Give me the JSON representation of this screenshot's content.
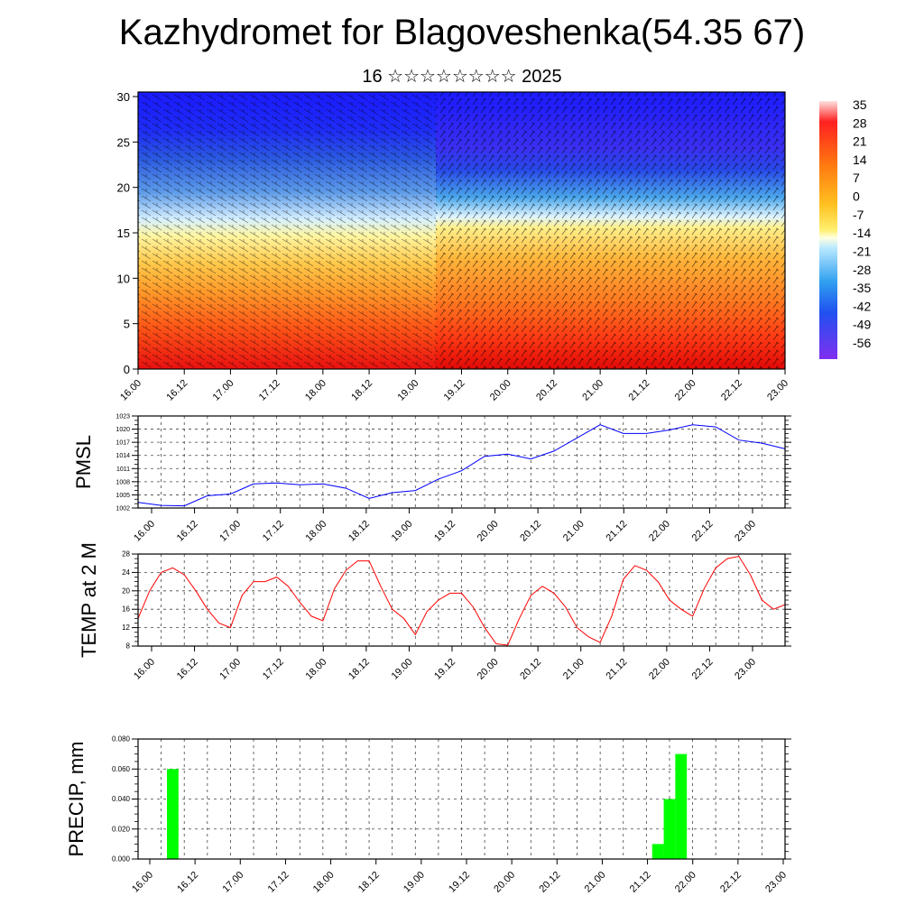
{
  "header": {
    "title": "Kazhydromet for Blagoveshenka(54.35 67)",
    "subtitle": "16 ☆☆☆☆☆☆☆☆ 2025"
  },
  "colors": {
    "pmsl_line": "#0000ff",
    "temp_line": "#ff0000",
    "precip_bar": "#00ff00",
    "grid": "#555555"
  },
  "chart_data": [
    {
      "type": "heatmap",
      "description_units": "temperature field with wind barbs",
      "x_ticks": [
        "16.00",
        "16.12",
        "17.00",
        "17.12",
        "18.00",
        "18.12",
        "19.00",
        "19.12",
        "20.00",
        "20.12",
        "21.00",
        "21.12",
        "22.00",
        "22.12",
        "23.00"
      ],
      "y_ticks": [
        0,
        5,
        10,
        15,
        20,
        25,
        30
      ],
      "ylim": [
        0,
        30.5
      ],
      "colorbar_labels": [
        "35",
        "28",
        "21",
        "14",
        "7",
        "0",
        "-7",
        "-14",
        "-21",
        "-28",
        "-35",
        "-42",
        "-49",
        "-56"
      ]
    },
    {
      "type": "line",
      "ylabel": "PMSL",
      "x_ticks": [
        "16.00",
        "16.12",
        "17.00",
        "17.12",
        "18.00",
        "18.12",
        "19.00",
        "19.12",
        "20.00",
        "20.12",
        "21.00",
        "21.12",
        "22.00",
        "22.12",
        "23.00"
      ],
      "y_ticks": [
        1002,
        1005,
        1008,
        1011,
        1014,
        1017,
        1020,
        1023
      ],
      "ylim": [
        1002,
        1023
      ],
      "xlim": [
        0,
        14
      ],
      "x": [
        0,
        0.5,
        1,
        1.5,
        2,
        2.5,
        3,
        3.5,
        4,
        4.5,
        5,
        5.5,
        6,
        6.5,
        7,
        7.5,
        8,
        8.5,
        9,
        9.5,
        10,
        10.5,
        11,
        11.5,
        12,
        12.5,
        13,
        13.5,
        14
      ],
      "values": [
        1003.3,
        1002.6,
        1002.5,
        1004.8,
        1005.2,
        1007.5,
        1007.7,
        1007.3,
        1007.5,
        1006.5,
        1004.2,
        1005.5,
        1006.0,
        1008.6,
        1010.5,
        1013.8,
        1014.3,
        1013.2,
        1015.0,
        1018.0,
        1021.0,
        1019.0,
        1019.0,
        1019.8,
        1021.0,
        1020.5,
        1017.5,
        1016.8,
        1015.5
      ]
    },
    {
      "type": "line",
      "ylabel": "TEMP at 2 M",
      "x_ticks": [
        "16.00",
        "16.12",
        "17.00",
        "17.12",
        "18.00",
        "18.12",
        "19.00",
        "19.12",
        "20.00",
        "20.12",
        "21.00",
        "21.12",
        "22.00",
        "22.12",
        "23.00"
      ],
      "y_ticks": [
        8,
        12,
        16,
        20,
        24,
        28
      ],
      "ylim": [
        8,
        28
      ],
      "xlim": [
        0,
        14
      ],
      "x": [
        0,
        0.25,
        0.5,
        0.75,
        1,
        1.25,
        1.5,
        1.75,
        2,
        2.25,
        2.5,
        2.75,
        3,
        3.25,
        3.5,
        3.75,
        4,
        4.25,
        4.5,
        4.75,
        5,
        5.25,
        5.5,
        5.75,
        6,
        6.25,
        6.5,
        6.75,
        7,
        7.25,
        7.5,
        7.75,
        8,
        8.25,
        8.5,
        8.75,
        9,
        9.25,
        9.5,
        9.75,
        10,
        10.25,
        10.5,
        10.75,
        11,
        11.25,
        11.5,
        11.75,
        12,
        12.25,
        12.5,
        12.75,
        13,
        13.25,
        13.5,
        13.75,
        14
      ],
      "values": [
        14.0,
        20.0,
        24.0,
        25.0,
        23.5,
        20.0,
        16.0,
        13.0,
        12.0,
        19.0,
        22.0,
        22.0,
        23.0,
        21.0,
        17.5,
        14.5,
        13.5,
        20.5,
        24.5,
        26.5,
        26.5,
        21.0,
        16.0,
        14.0,
        10.5,
        15.5,
        18.0,
        19.5,
        19.5,
        16.5,
        12.0,
        8.5,
        8.2,
        14.0,
        19.0,
        21.0,
        19.5,
        16.5,
        12.0,
        10.0,
        8.8,
        14.5,
        22.5,
        25.5,
        24.5,
        22.0,
        18.0,
        16.0,
        14.5,
        20.5,
        25.0,
        27.0,
        27.5,
        23.5,
        18.0,
        16.0,
        17.0
      ]
    },
    {
      "type": "bar",
      "ylabel": "PRECIP, mm",
      "x_ticks": [
        "16.00",
        "16.12",
        "17.00",
        "17.12",
        "18.00",
        "18.12",
        "19.00",
        "19.12",
        "20.00",
        "20.12",
        "21.00",
        "21.12",
        "22.00",
        "22.12",
        "23.00"
      ],
      "y_ticks": [
        "0.000",
        "0.020",
        "0.040",
        "0.060",
        "0.080"
      ],
      "ylim": [
        0,
        0.08
      ],
      "xlim": [
        0,
        14
      ],
      "bars": [
        {
          "x": 0.75,
          "value": 0.06
        },
        {
          "x": 11.25,
          "value": 0.01
        },
        {
          "x": 11.5,
          "value": 0.04
        },
        {
          "x": 11.75,
          "value": 0.07
        }
      ]
    }
  ]
}
